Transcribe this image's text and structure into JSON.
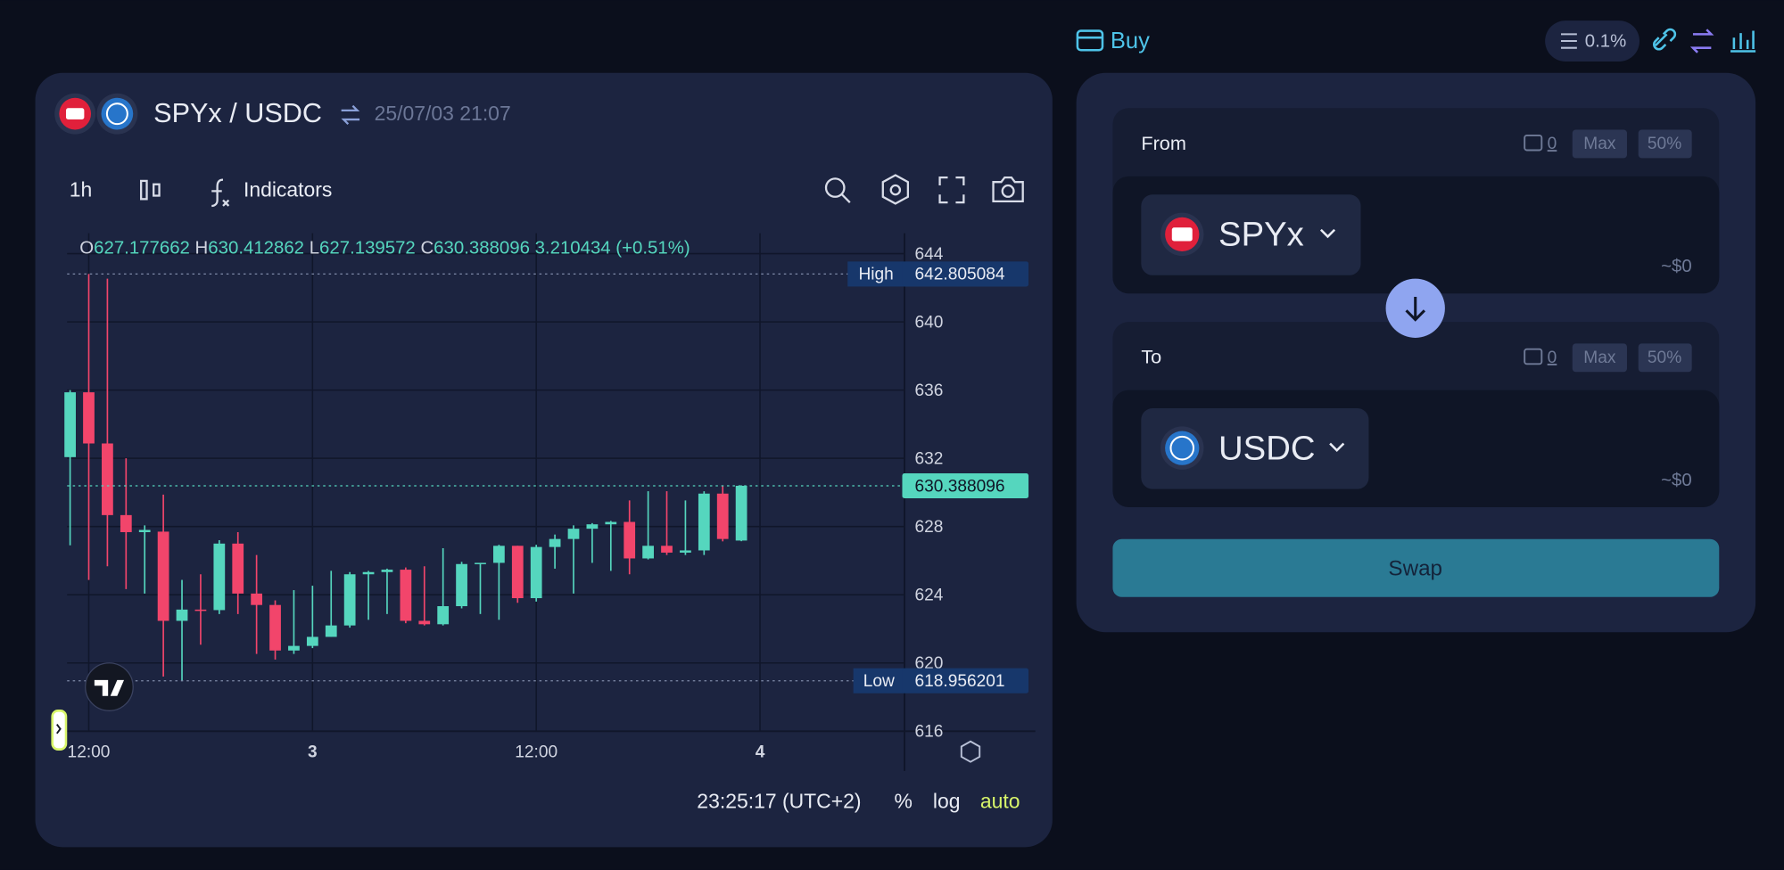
{
  "top_bar": {
    "buy": "Buy",
    "slippage": "0.1%"
  },
  "header": {
    "pair": "SPYx / USDC",
    "timestamp": "25/07/03 21:07"
  },
  "toolbar": {
    "interval": "1h",
    "indicators": "Indicators"
  },
  "footer": {
    "clock": "23:25:17 (UTC+2)",
    "percent": "%",
    "log": "log",
    "auto": "auto"
  },
  "chart_data": {
    "type": "candlestick",
    "x": [
      -1,
      0,
      1,
      2,
      3,
      4,
      5,
      6,
      7,
      8,
      9,
      10,
      11,
      12,
      13,
      14,
      15,
      16,
      17,
      18,
      19,
      20,
      21,
      22,
      23,
      24,
      25,
      26,
      27,
      28,
      29,
      30,
      31,
      32,
      33,
      34,
      35
    ],
    "open": [
      632.07,
      635.87,
      632.87,
      628.67,
      627.67,
      627.7,
      622.47,
      623.13,
      623.1,
      627.0,
      624.07,
      623.4,
      620.73,
      621.0,
      621.53,
      622.2,
      625.2,
      625.33,
      625.47,
      622.47,
      622.27,
      623.33,
      625.8,
      625.87,
      626.87,
      623.8,
      626.8,
      627.27,
      627.87,
      628.13,
      628.27,
      626.13,
      626.87,
      626.47,
      626.6,
      629.93,
      627.177662
    ],
    "high": [
      636.0,
      642.805084,
      642.53,
      632.0,
      628.07,
      629.87,
      624.87,
      625.2,
      627.2,
      627.67,
      626.33,
      623.67,
      624.27,
      624.53,
      625.4,
      625.33,
      625.4,
      625.53,
      625.6,
      625.67,
      626.73,
      625.93,
      625.87,
      626.93,
      626.87,
      626.93,
      627.53,
      628.07,
      628.2,
      628.33,
      629.53,
      630.07,
      630.07,
      629.53,
      630.07,
      630.37,
      630.412862
    ],
    "low": [
      626.9,
      624.87,
      625.67,
      624.33,
      624.07,
      619.2,
      618.956201,
      621.07,
      622.87,
      622.87,
      620.53,
      620.2,
      620.53,
      620.87,
      621.53,
      622.07,
      622.53,
      622.87,
      622.33,
      622.2,
      622.2,
      623.2,
      622.87,
      622.53,
      623.53,
      623.6,
      625.53,
      624.07,
      625.87,
      625.4,
      625.2,
      626.07,
      626.33,
      626.33,
      626.33,
      627.13,
      627.139572
    ],
    "close": [
      635.87,
      632.87,
      628.67,
      627.67,
      627.8,
      622.47,
      623.13,
      623.1,
      627.0,
      624.07,
      623.4,
      620.73,
      621.0,
      621.53,
      622.2,
      625.2,
      625.33,
      625.47,
      622.47,
      622.27,
      623.33,
      625.8,
      625.87,
      626.87,
      623.8,
      626.8,
      627.27,
      627.87,
      628.13,
      628.27,
      626.13,
      626.87,
      626.47,
      626.6,
      629.93,
      627.27,
      630.388096
    ],
    "up_color": "#55d6be",
    "down_color": "#f2456b",
    "xlim": [
      -1.16,
      43.75
    ],
    "xticks": [
      {
        "value": 0,
        "label": "12:00"
      },
      {
        "value": 12,
        "label": "3"
      },
      {
        "value": 24,
        "label": "12:00"
      },
      {
        "value": 36,
        "label": "4"
      }
    ],
    "ylim": [
      616,
      645.2
    ],
    "yticks": [
      616,
      620,
      624,
      628,
      632,
      636,
      640,
      644
    ],
    "grid": true,
    "ohlc_labels": [
      "O",
      "H",
      "L",
      "C"
    ],
    "change": "3.210434 (+0.51%)",
    "high_label": "High",
    "low_label": "Low"
  },
  "swap": {
    "from": {
      "label": "From",
      "balance": "0",
      "max": "Max",
      "half": "50%",
      "token": "SPYx",
      "usd": "~$0"
    },
    "to": {
      "label": "To",
      "balance": "0",
      "max": "Max",
      "half": "50%",
      "token": "USDC",
      "usd": "~$0"
    },
    "button": "Swap"
  }
}
